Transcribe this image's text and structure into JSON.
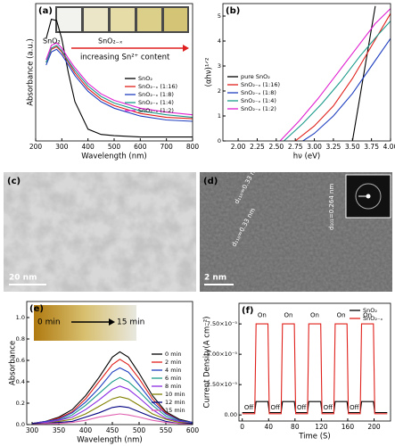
{
  "chart_data": [
    {
      "type": "line",
      "label": "(a)",
      "xlabel": "Wavelength (nm)",
      "ylabel": "Absorbance (a.u.)",
      "legend": "right",
      "x": [
        240,
        260,
        280,
        300,
        325,
        350,
        400,
        450,
        500,
        600,
        700,
        800
      ],
      "xlim": [
        200,
        800
      ],
      "xticks": [
        200,
        300,
        400,
        500,
        600,
        700,
        800
      ],
      "ylim": [
        0,
        1.05
      ],
      "annotations": [
        "SnO₂",
        "SnO₂₋ₓ",
        "increasing Sn²⁺ content"
      ],
      "series": [
        {
          "name": "SnO₂",
          "color": "#000000",
          "values": [
            0.78,
            0.93,
            0.92,
            0.78,
            0.52,
            0.3,
            0.09,
            0.05,
            0.04,
            0.03,
            0.03,
            0.03
          ]
        },
        {
          "name": "SnO₂₋ₓ (1:16)",
          "color": "#e0201b",
          "values": [
            0.6,
            0.7,
            0.72,
            0.68,
            0.6,
            0.52,
            0.4,
            0.32,
            0.27,
            0.21,
            0.18,
            0.17
          ]
        },
        {
          "name": "SnO₂₋ₓ (1:8)",
          "color": "#1f3fbf",
          "values": [
            0.58,
            0.68,
            0.7,
            0.66,
            0.58,
            0.5,
            0.38,
            0.3,
            0.25,
            0.19,
            0.16,
            0.15
          ]
        },
        {
          "name": "SnO₂₋ₓ (1:4)",
          "color": "#1a9a8a",
          "values": [
            0.6,
            0.71,
            0.73,
            0.69,
            0.61,
            0.54,
            0.42,
            0.34,
            0.29,
            0.23,
            0.2,
            0.18
          ]
        },
        {
          "name": "SnO₂₋ₓ (1:2)",
          "color": "#e020d0",
          "values": [
            0.62,
            0.73,
            0.75,
            0.71,
            0.63,
            0.56,
            0.44,
            0.36,
            0.31,
            0.25,
            0.22,
            0.2
          ]
        }
      ]
    },
    {
      "type": "line",
      "label": "(b)",
      "xlabel": "hν (eV)",
      "ylabel": "(αhν)¹ᐟ²",
      "legend": "left",
      "xlim": [
        1.8,
        4.0
      ],
      "xticks": [
        {
          "value": 2,
          "label": "2.00"
        },
        2.25,
        {
          "value": 2.5,
          "label": "2.50"
        },
        2.75,
        {
          "value": 3,
          "label": "3.00"
        },
        3.25,
        {
          "value": 3.5,
          "label": "3.50"
        },
        3.75,
        {
          "value": 4,
          "label": "4.00"
        }
      ],
      "ylim": [
        0,
        5.5
      ],
      "yticks": [
        0,
        1,
        2,
        3,
        4,
        5
      ],
      "series": [
        {
          "name": "pure SnO₂",
          "color": "#000000",
          "x": [
            3.5,
            3.8
          ],
          "values": [
            0,
            5.4
          ]
        },
        {
          "name": "SnO₂₋ₓ (1:16)",
          "color": "#e0201b",
          "x": [
            2.75,
            3.0,
            3.25,
            3.5,
            3.75,
            4.0
          ],
          "values": [
            0,
            0.6,
            1.4,
            2.5,
            3.8,
            5.1
          ]
        },
        {
          "name": "SnO₂₋ₓ (1:8)",
          "color": "#1f3fbf",
          "x": [
            2.85,
            3.0,
            3.25,
            3.5,
            3.75,
            4.0
          ],
          "values": [
            0,
            0.3,
            1.0,
            1.9,
            3.0,
            4.1
          ]
        },
        {
          "name": "SnO₂₋ₓ (1:4)",
          "color": "#1a9a8a",
          "x": [
            2.6,
            2.85,
            3.1,
            3.35,
            3.6,
            3.85,
            4.0
          ],
          "values": [
            0,
            0.7,
            1.5,
            2.4,
            3.4,
            4.3,
            4.8
          ]
        },
        {
          "name": "SnO₂₋ₓ (1:2)",
          "color": "#e020d0",
          "x": [
            2.55,
            2.8,
            3.05,
            3.3,
            3.55,
            3.8,
            4.0
          ],
          "values": [
            0,
            0.8,
            1.7,
            2.7,
            3.7,
            4.7,
            5.3
          ]
        }
      ]
    },
    {
      "type": "line",
      "label": "(e)",
      "xlabel": "Wavelength (nm)",
      "ylabel": "Absorbance",
      "legend": "right",
      "x": [
        300,
        325,
        350,
        375,
        400,
        425,
        450,
        464,
        480,
        500,
        525,
        550,
        575,
        600
      ],
      "xlim": [
        290,
        600
      ],
      "xticks": [
        300,
        350,
        400,
        450,
        500,
        550,
        600
      ],
      "ylim": [
        0,
        1.15
      ],
      "yticks": [
        {
          "value": 0,
          "label": "0.0"
        },
        0.2,
        0.4,
        0.6,
        0.8,
        {
          "value": 1,
          "label": "1.0"
        }
      ],
      "annotations": [
        "0 min",
        "15 min"
      ],
      "series": [
        {
          "name": "0 min",
          "color": "#000000",
          "values": [
            0.01,
            0.03,
            0.07,
            0.14,
            0.27,
            0.44,
            0.63,
            0.68,
            0.63,
            0.48,
            0.27,
            0.12,
            0.05,
            0.02
          ]
        },
        {
          "name": "2 min",
          "color": "#e0201b",
          "values": [
            0.01,
            0.03,
            0.06,
            0.12,
            0.24,
            0.4,
            0.56,
            0.61,
            0.56,
            0.43,
            0.24,
            0.11,
            0.04,
            0.02
          ]
        },
        {
          "name": "4 min",
          "color": "#1f3fbf",
          "values": [
            0.01,
            0.03,
            0.05,
            0.11,
            0.21,
            0.34,
            0.49,
            0.53,
            0.49,
            0.37,
            0.21,
            0.1,
            0.04,
            0.02
          ]
        },
        {
          "name": "6 min",
          "color": "#1a9a8a",
          "values": [
            0.01,
            0.02,
            0.04,
            0.09,
            0.18,
            0.29,
            0.4,
            0.44,
            0.4,
            0.31,
            0.18,
            0.08,
            0.03,
            0.01
          ]
        },
        {
          "name": "8 min",
          "color": "#8a2be2",
          "values": [
            0.01,
            0.02,
            0.04,
            0.07,
            0.14,
            0.23,
            0.33,
            0.36,
            0.33,
            0.25,
            0.14,
            0.06,
            0.03,
            0.01
          ]
        },
        {
          "name": "10 min",
          "color": "#808000",
          "values": [
            0.01,
            0.01,
            0.03,
            0.05,
            0.1,
            0.17,
            0.24,
            0.26,
            0.24,
            0.18,
            0.1,
            0.05,
            0.02,
            0.01
          ]
        },
        {
          "name": "12 min",
          "color": "#000080",
          "values": [
            0.01,
            0.01,
            0.02,
            0.03,
            0.07,
            0.11,
            0.16,
            0.17,
            0.16,
            0.12,
            0.07,
            0.03,
            0.01,
            0.01
          ]
        },
        {
          "name": "15 min",
          "color": "#e060b0",
          "values": [
            0,
            0.01,
            0.01,
            0.02,
            0.04,
            0.07,
            0.09,
            0.1,
            0.09,
            0.07,
            0.04,
            0.02,
            0.01,
            0
          ]
        }
      ]
    },
    {
      "type": "line",
      "label": "(f)",
      "xlabel": "Time (S)",
      "ylabel": "Current Density(A cm⁻²)",
      "legend": "top-right",
      "x": [
        0,
        19,
        21,
        39,
        41,
        59,
        61,
        79,
        81,
        99,
        101,
        119,
        121,
        139,
        141,
        159,
        161,
        179,
        181,
        199,
        201,
        220
      ],
      "xlim": [
        -5,
        225
      ],
      "xticks": [
        0,
        40,
        80,
        120,
        160,
        200
      ],
      "ylim": [
        -5e-06,
        9.2e-05
      ],
      "yticks": [
        {
          "value": 0,
          "label": "0.00"
        },
        {
          "value": 2.5e-05,
          "label": "2.50×10⁻⁵"
        },
        {
          "value": 5e-05,
          "label": "5.00×10⁻⁵"
        },
        {
          "value": 7.5e-05,
          "label": "7.50×10⁻⁵"
        }
      ],
      "annotations": [
        "On",
        "On",
        "On",
        "On",
        "On",
        "Off",
        "Off",
        "Off",
        "Off",
        "Off"
      ],
      "series": [
        {
          "name": "SnO₂",
          "color": "#000000",
          "values": [
            2e-06,
            2e-06,
            1.1e-05,
            1.1e-05,
            2e-06,
            2e-06,
            1.1e-05,
            1.1e-05,
            2e-06,
            2e-06,
            1.1e-05,
            1.1e-05,
            2e-06,
            2e-06,
            1.1e-05,
            1.1e-05,
            2e-06,
            2e-06,
            1.1e-05,
            1.1e-05,
            2e-06,
            2e-06
          ]
        },
        {
          "name": "SnO₂₋ₓ",
          "color": "#e0201b",
          "values": [
            1e-06,
            1e-06,
            7.5e-05,
            7.5e-05,
            1e-06,
            1e-06,
            7.5e-05,
            7.5e-05,
            1e-06,
            1e-06,
            7.5e-05,
            7.5e-05,
            1e-06,
            1e-06,
            7.5e-05,
            7.5e-05,
            1e-06,
            1e-06,
            7.5e-05,
            7.5e-05,
            1e-06,
            1e-06
          ]
        }
      ]
    }
  ],
  "images": [
    {
      "label": "(c)",
      "scale": "20 nm"
    },
    {
      "label": "(d)",
      "scale": "2 nm",
      "annotations": [
        "d₁₁₀=0.33 nm",
        "d₁₁₀=0.33 nm",
        "d₁₀₁=0.264 nm"
      ]
    }
  ]
}
